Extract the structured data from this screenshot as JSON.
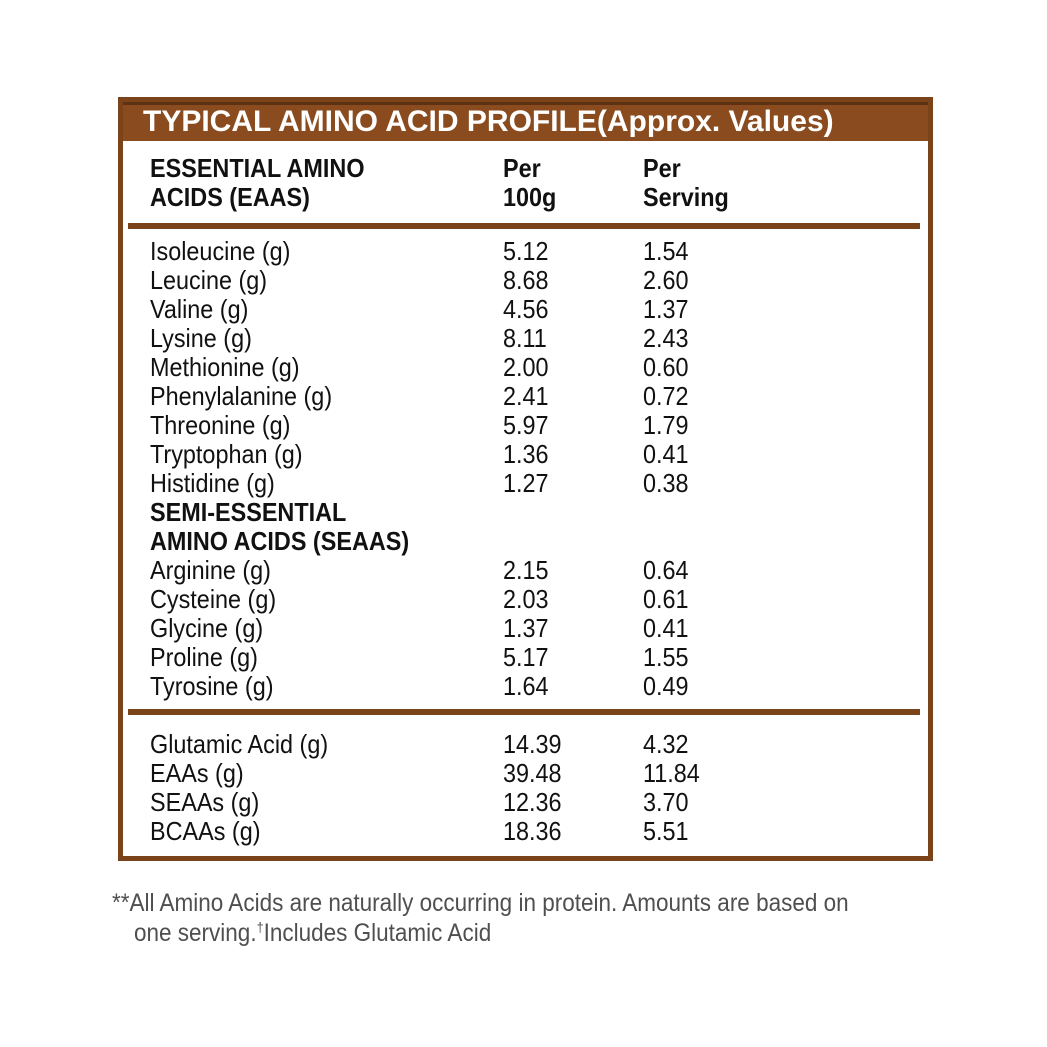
{
  "colors": {
    "header_bar_brown": "#8a4b1e",
    "border_brown": "#7a431a",
    "rule_brown": "#7a431a",
    "title_text": "#ffffff",
    "table_text": "#111111",
    "footnote_text": "#4f4f51",
    "background": "#ffffff"
  },
  "title_bar": {
    "title": "TYPICAL AMINO ACID PROFILE(Approx. Values)"
  },
  "table": {
    "header": {
      "col1_line1": "ESSENTIAL AMINO",
      "col1_line2": "ACIDS (EAAS)",
      "col2_line1": "Per",
      "col2_line2": "100g",
      "col3_line1": "Per",
      "col3_line2": "Serving"
    },
    "eaa_rows": [
      {
        "name": "Isoleucine (g)",
        "per_100g": "5.12",
        "per_serving": "1.54"
      },
      {
        "name": "Leucine (g)",
        "per_100g": "8.68",
        "per_serving": "2.60"
      },
      {
        "name": "Valine (g)",
        "per_100g": "4.56",
        "per_serving": "1.37"
      },
      {
        "name": "Lysine (g)",
        "per_100g": "8.11",
        "per_serving": "2.43"
      },
      {
        "name": "Methionine (g)",
        "per_100g": "2.00",
        "per_serving": "0.60"
      },
      {
        "name": "Phenylalanine (g)",
        "per_100g": "2.41",
        "per_serving": "0.72"
      },
      {
        "name": "Threonine (g)",
        "per_100g": "5.97",
        "per_serving": "1.79"
      },
      {
        "name": "Tryptophan (g)",
        "per_100g": "1.36",
        "per_serving": "0.41"
      },
      {
        "name": "Histidine (g)",
        "per_100g": "1.27",
        "per_serving": "0.38"
      }
    ],
    "seaa_header_line1": "SEMI-ESSENTIAL",
    "seaa_header_line2": "AMINO ACIDS (SEAAS)",
    "seaa_rows": [
      {
        "name": "Arginine (g)",
        "per_100g": "2.15",
        "per_serving": "0.64"
      },
      {
        "name": "Cysteine (g)",
        "per_100g": "2.03",
        "per_serving": "0.61"
      },
      {
        "name": "Glycine (g)",
        "per_100g": "1.37",
        "per_serving": "0.41"
      },
      {
        "name": "Proline (g)",
        "per_100g": "5.17",
        "per_serving": "1.55"
      },
      {
        "name": "Tyrosine (g)",
        "per_100g": "1.64",
        "per_serving": "0.49"
      }
    ],
    "summary_rows": [
      {
        "name": "Glutamic Acid (g)",
        "per_100g": "14.39",
        "per_serving": "4.32"
      },
      {
        "name": "EAAs (g)",
        "per_100g": "39.48",
        "per_serving": "11.84"
      },
      {
        "name": "SEAAs (g)",
        "per_100g": "12.36",
        "per_serving": "3.70"
      },
      {
        "name": "BCAAs (g)",
        "per_100g": "18.36",
        "per_serving": "5.51"
      }
    ]
  },
  "footnote": {
    "line1": "**All Amino Acids are naturally occurring in protein. Amounts are based on",
    "line2_prefix": "one serving.",
    "dagger": "†",
    "line2_suffix": "Includes Glutamic Acid"
  }
}
